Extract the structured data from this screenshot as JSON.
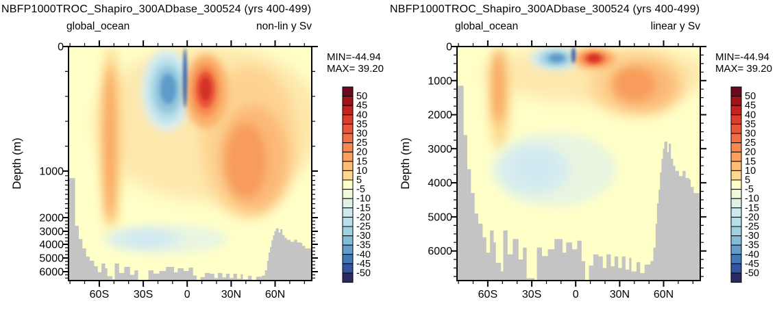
{
  "page": {
    "background": "#ffffff",
    "plot_bg": "#ffffc8",
    "bathymetry_color": "#c4c4c4",
    "axis_color": "#000000"
  },
  "panels": [
    {
      "title": "NBFP1000TROC_Shapiro_300ADbase_300524 (yrs 400-499)",
      "subtitle_left": "global_ocean",
      "subtitle_right": "non-lin y Sv",
      "ylabel": "Depth (m)",
      "stats": {
        "min_label": "MIN=-44.94",
        "max_label": "MAX= 39.20"
      }
    },
    {
      "title": "NBFP1000TROC_Shapiro_300ADbase_300524 (yrs 400-499)",
      "subtitle_left": "global_ocean",
      "subtitle_right": "linear y Sv",
      "ylabel": "Depth (m)",
      "stats": {
        "min_label": "MIN=-44.94",
        "max_label": "MAX= 39.20"
      }
    }
  ],
  "chart_data": {
    "type": "contour",
    "title": "NBFP1000TROC_Shapiro_300ADbase_300524 (yrs 400-499)",
    "region": "global_ocean",
    "field_units": "Sv",
    "stats": {
      "min": -44.94,
      "max": 39.2
    },
    "shared": {
      "lat_range": [
        -81,
        85
      ],
      "x_ticks": {
        "major_lats": [
          -60,
          -30,
          0,
          30,
          60
        ],
        "labels": [
          "60S",
          "30S",
          "0",
          "30N",
          "60N"
        ],
        "minor_from": -80,
        "minor_to": 80,
        "minor_step": 10
      },
      "colorbar": {
        "labels": [
          "50",
          "45",
          "40",
          "35",
          "30",
          "25",
          "20",
          "15",
          "10",
          "5",
          "-5",
          "-10",
          "-15",
          "-20",
          "-25",
          "-30",
          "-35",
          "-40",
          "-45",
          "-50"
        ],
        "colors": [
          "#690b20",
          "#a31218",
          "#c62320",
          "#dd3d2b",
          "#e85639",
          "#f07044",
          "#f68950",
          "#faa15e",
          "#fcbd74",
          "#fed890",
          "#ffffc8",
          "#eff8d9",
          "#dff0e6",
          "#cde8ef",
          "#b8dfe9",
          "#a0d1e2",
          "#83bcd8",
          "#639ecb",
          "#4379b6",
          "#32549c",
          "#2a2b62"
        ]
      },
      "features": [
        {
          "name": "upper-warm-wash",
          "lat": 15,
          "depth": 800,
          "rlat": 78,
          "rdepth": 850,
          "color": "#fee8ad",
          "blur": 12
        },
        {
          "name": "south-column-outer",
          "lat": -52,
          "depth": 1500,
          "rlat": 7,
          "rdepth": 1550,
          "color": "#fdd68c",
          "blur": 8
        },
        {
          "name": "south-column-core",
          "lat": -52.5,
          "depth": 1200,
          "rlat": 4,
          "rdepth": 1050,
          "color": "#f8a45f",
          "blur": 7
        },
        {
          "name": "north-warm-outer",
          "lat": 42,
          "depth": 1100,
          "rlat": 33,
          "rdepth": 950,
          "color": "#fdd391",
          "blur": 9
        },
        {
          "name": "north-warm-mid",
          "lat": 45,
          "depth": 1150,
          "rlat": 23,
          "rdepth": 680,
          "color": "#fbb877",
          "blur": 8
        },
        {
          "name": "north-warm-core",
          "lat": 40,
          "depth": 1100,
          "rlat": 14,
          "rdepth": 480,
          "color": "#f79c5b",
          "blur": 6
        },
        {
          "name": "deep-cool-outer",
          "lat": -15,
          "depth": 3600,
          "rlat": 43,
          "rdepth": 1100,
          "color": "#e9f5e0",
          "blur": 7
        },
        {
          "name": "deep-cool-mid",
          "lat": -28,
          "depth": 3600,
          "rlat": 24,
          "rdepth": 750,
          "color": "#d7edee",
          "blur": 6
        },
        {
          "name": "deep-cool-core",
          "lat": -27,
          "depth": 3550,
          "rlat": 14,
          "rdepth": 480,
          "color": "#cfe9f0",
          "blur": 5
        },
        {
          "name": "tropical-blue-cell-1",
          "lat": -14,
          "depth": 350,
          "rlat": 17,
          "rdepth": 330,
          "color": "#d9eef1",
          "blur": 6
        },
        {
          "name": "tropical-blue-cell-2",
          "lat": -14,
          "depth": 350,
          "rlat": 13,
          "rdepth": 260,
          "color": "#b7dee9",
          "blur": 5
        },
        {
          "name": "tropical-blue-cell-3",
          "lat": -13.5,
          "depth": 350,
          "rlat": 9,
          "rdepth": 190,
          "color": "#8fc5dc",
          "blur": 4
        },
        {
          "name": "tropical-blue-cell-core",
          "lat": -13,
          "depth": 340,
          "rlat": 5.5,
          "rdepth": 120,
          "color": "#5f9aca",
          "blur": 3
        },
        {
          "name": "tropical-red-cell-1",
          "lat": 13,
          "depth": 360,
          "rlat": 15,
          "rdepth": 300,
          "color": "#fbb26d",
          "blur": 5
        },
        {
          "name": "tropical-red-cell-2",
          "lat": 12.5,
          "depth": 350,
          "rlat": 10,
          "rdepth": 215,
          "color": "#f68c50",
          "blur": 4
        },
        {
          "name": "tropical-red-cell-3",
          "lat": 12.5,
          "depth": 345,
          "rlat": 6.5,
          "rdepth": 150,
          "color": "#e85338",
          "blur": 3
        },
        {
          "name": "tropical-red-cell-core",
          "lat": 12.5,
          "depth": 340,
          "rlat": 3.8,
          "rdepth": 95,
          "color": "#d33226",
          "blur": 2.5
        },
        {
          "name": "equator-negative-sliver",
          "lat": -1.5,
          "depth": 250,
          "rlat": 1.4,
          "rdepth": 240,
          "color": "#3c66aa",
          "blur": 2
        }
      ],
      "bathymetry_lat_depth": [
        [
          -81,
          1150
        ],
        [
          -76.5,
          2600
        ],
        [
          -74,
          3600
        ],
        [
          -71.5,
          4300
        ],
        [
          -69,
          4900
        ],
        [
          -66.5,
          5200
        ],
        [
          -63.5,
          5600
        ],
        [
          -61,
          6050
        ],
        [
          -58.5,
          5400
        ],
        [
          -56,
          5750
        ],
        [
          -54.5,
          6350
        ],
        [
          -51,
          6600
        ],
        [
          -49.5,
          5400
        ],
        [
          -46.5,
          6100
        ],
        [
          -43,
          5650
        ],
        [
          -39,
          6250
        ],
        [
          -36,
          5900
        ],
        [
          -33.5,
          6800
        ],
        [
          -28,
          6870
        ],
        [
          -26.5,
          5900
        ],
        [
          -23,
          6150
        ],
        [
          -19,
          5950
        ],
        [
          -14.5,
          5650
        ],
        [
          -9,
          6050
        ],
        [
          -6.5,
          5750
        ],
        [
          -2.5,
          5950
        ],
        [
          1,
          5700
        ],
        [
          4,
          6300
        ],
        [
          6.5,
          6870
        ],
        [
          9,
          6430
        ],
        [
          12,
          6100
        ],
        [
          15.5,
          6160
        ],
        [
          18.5,
          6500
        ],
        [
          21,
          6100
        ],
        [
          24,
          6450
        ],
        [
          26.5,
          6160
        ],
        [
          29,
          6500
        ],
        [
          31.5,
          6160
        ],
        [
          34,
          6550
        ],
        [
          36.5,
          6200
        ],
        [
          38,
          6600
        ],
        [
          41.5,
          6330
        ],
        [
          44,
          6650
        ],
        [
          47,
          6400
        ],
        [
          51,
          6300
        ],
        [
          53,
          5900
        ],
        [
          54.5,
          5200
        ],
        [
          55.5,
          4600
        ],
        [
          56.5,
          4200
        ],
        [
          57.5,
          3700
        ],
        [
          58.5,
          3300
        ],
        [
          59.5,
          3000
        ],
        [
          60.5,
          2790
        ],
        [
          62.5,
          3100
        ],
        [
          63.5,
          2850
        ],
        [
          65,
          3290
        ],
        [
          66.5,
          3500
        ],
        [
          68,
          3650
        ],
        [
          70.5,
          3800
        ],
        [
          73,
          3650
        ],
        [
          75,
          3860
        ],
        [
          77.5,
          3900
        ],
        [
          78.5,
          4120
        ],
        [
          80.5,
          4300
        ],
        [
          85,
          4400
        ]
      ]
    },
    "views": [
      {
        "name": "non-linear depth axis",
        "y_anchors": [
          [
            0,
            0
          ],
          [
            1000,
            182
          ],
          [
            2000,
            250
          ],
          [
            3000,
            270
          ],
          [
            4000,
            289
          ],
          [
            5000,
            309
          ],
          [
            6000,
            329
          ],
          [
            6700,
            342
          ]
        ],
        "y_ticks": {
          "depths": [
            0,
            1000,
            2000,
            3000,
            4000,
            5000,
            6000
          ],
          "labels": [
            "0",
            "1000",
            "2000",
            "3000",
            "4000",
            "5000",
            "6000"
          ]
        },
        "y_minor_segments": [
          {
            "from": 200,
            "to": 800,
            "step": 200
          },
          {
            "from": 1100,
            "to": 1900,
            "step": 100
          },
          {
            "from": 2250,
            "to": 6600,
            "step": 250
          }
        ]
      },
      {
        "name": "linear depth axis",
        "y_anchors": [
          [
            0,
            0
          ],
          [
            6870,
            342
          ]
        ],
        "y_ticks": {
          "depths": [
            0,
            1000,
            2000,
            3000,
            4000,
            5000,
            6000
          ],
          "labels": [
            "0",
            "1000",
            "2000",
            "3000",
            "4000",
            "5000",
            "6000"
          ]
        },
        "y_minor_segments": [
          {
            "from": 250,
            "to": 6750,
            "step": 250
          }
        ]
      }
    ]
  }
}
